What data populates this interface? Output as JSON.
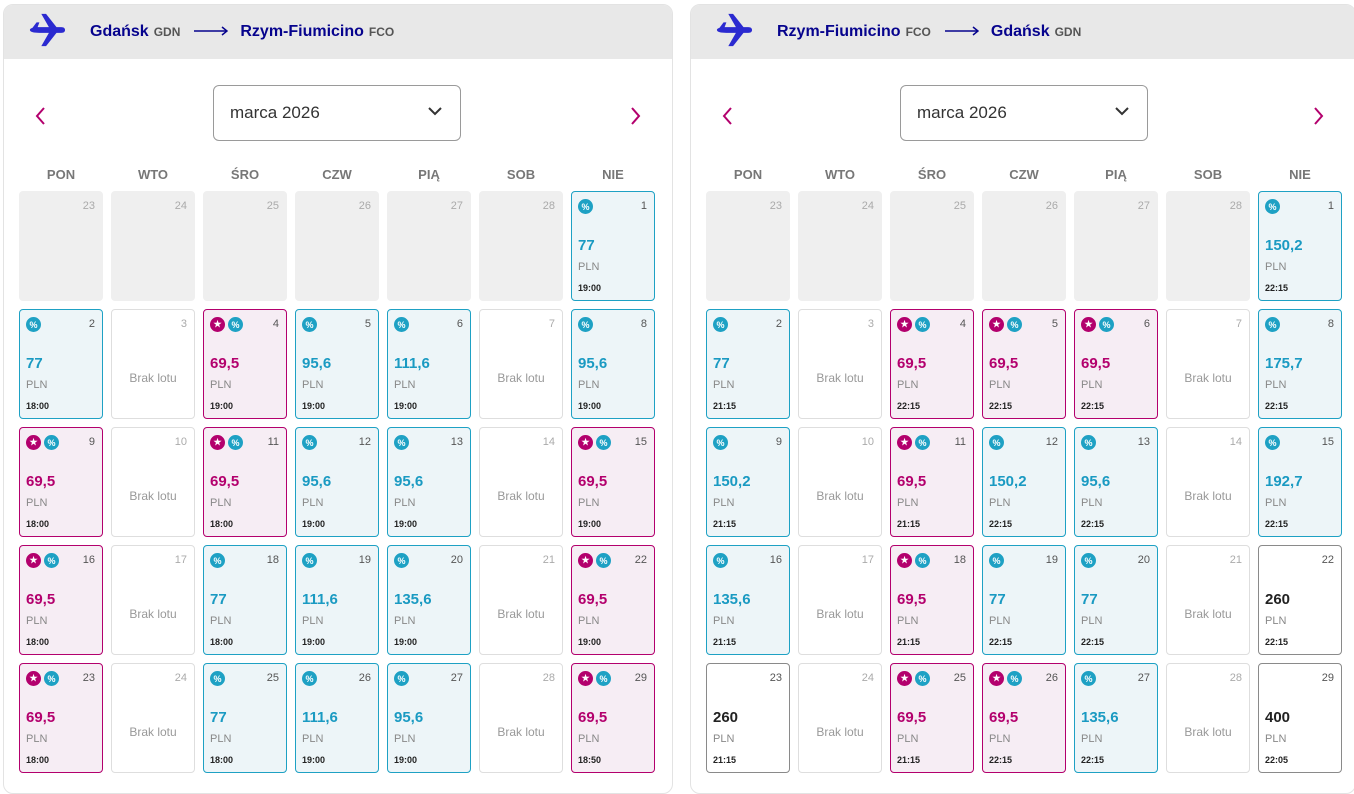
{
  "panels": [
    {
      "origin_city": "Gdańsk",
      "origin_code": "GDN",
      "dest_city": "Rzym-Fiumicino",
      "dest_code": "FCO",
      "month_label": "marca 2026",
      "weekdays": [
        "PON",
        "WTO",
        "ŚRO",
        "CZW",
        "PIĄ",
        "SOB",
        "NIE"
      ],
      "cells": [
        {
          "day": "23",
          "kind": "pad"
        },
        {
          "day": "24",
          "kind": "pad"
        },
        {
          "day": "25",
          "kind": "pad"
        },
        {
          "day": "26",
          "kind": "pad"
        },
        {
          "day": "27",
          "kind": "pad"
        },
        {
          "day": "28",
          "kind": "pad"
        },
        {
          "day": "1",
          "kind": "promo",
          "price": "77",
          "currency": "PLN",
          "time": "19:00",
          "badges": [
            "disc"
          ]
        },
        {
          "day": "2",
          "kind": "promo",
          "price": "77",
          "currency": "PLN",
          "time": "18:00",
          "badges": [
            "disc"
          ]
        },
        {
          "day": "3",
          "kind": "noflight",
          "label": "Brak lotu"
        },
        {
          "day": "4",
          "kind": "club",
          "price": "69,5",
          "currency": "PLN",
          "time": "19:00",
          "badges": [
            "star",
            "disc"
          ]
        },
        {
          "day": "5",
          "kind": "promo",
          "price": "95,6",
          "currency": "PLN",
          "time": "19:00",
          "badges": [
            "disc"
          ]
        },
        {
          "day": "6",
          "kind": "promo",
          "price": "111,6",
          "currency": "PLN",
          "time": "19:00",
          "badges": [
            "disc"
          ]
        },
        {
          "day": "7",
          "kind": "noflight",
          "label": "Brak lotu"
        },
        {
          "day": "8",
          "kind": "promo",
          "price": "95,6",
          "currency": "PLN",
          "time": "19:00",
          "badges": [
            "disc"
          ]
        },
        {
          "day": "9",
          "kind": "club",
          "price": "69,5",
          "currency": "PLN",
          "time": "18:00",
          "badges": [
            "star",
            "disc"
          ]
        },
        {
          "day": "10",
          "kind": "noflight",
          "label": "Brak lotu"
        },
        {
          "day": "11",
          "kind": "club",
          "price": "69,5",
          "currency": "PLN",
          "time": "18:00",
          "badges": [
            "star",
            "disc"
          ]
        },
        {
          "day": "12",
          "kind": "promo",
          "price": "95,6",
          "currency": "PLN",
          "time": "19:00",
          "badges": [
            "disc"
          ]
        },
        {
          "day": "13",
          "kind": "promo",
          "price": "95,6",
          "currency": "PLN",
          "time": "19:00",
          "badges": [
            "disc"
          ]
        },
        {
          "day": "14",
          "kind": "noflight",
          "label": "Brak lotu"
        },
        {
          "day": "15",
          "kind": "club",
          "price": "69,5",
          "currency": "PLN",
          "time": "19:00",
          "badges": [
            "star",
            "disc"
          ]
        },
        {
          "day": "16",
          "kind": "club",
          "price": "69,5",
          "currency": "PLN",
          "time": "18:00",
          "badges": [
            "star",
            "disc"
          ]
        },
        {
          "day": "17",
          "kind": "noflight",
          "label": "Brak lotu"
        },
        {
          "day": "18",
          "kind": "promo",
          "price": "77",
          "currency": "PLN",
          "time": "18:00",
          "badges": [
            "disc"
          ]
        },
        {
          "day": "19",
          "kind": "promo",
          "price": "111,6",
          "currency": "PLN",
          "time": "19:00",
          "badges": [
            "disc"
          ]
        },
        {
          "day": "20",
          "kind": "promo",
          "price": "135,6",
          "currency": "PLN",
          "time": "19:00",
          "badges": [
            "disc"
          ]
        },
        {
          "day": "21",
          "kind": "noflight",
          "label": "Brak lotu"
        },
        {
          "day": "22",
          "kind": "club",
          "price": "69,5",
          "currency": "PLN",
          "time": "19:00",
          "badges": [
            "star",
            "disc"
          ]
        },
        {
          "day": "23",
          "kind": "club",
          "price": "69,5",
          "currency": "PLN",
          "time": "18:00",
          "badges": [
            "star",
            "disc"
          ]
        },
        {
          "day": "24",
          "kind": "noflight",
          "label": "Brak lotu"
        },
        {
          "day": "25",
          "kind": "promo",
          "price": "77",
          "currency": "PLN",
          "time": "18:00",
          "badges": [
            "disc"
          ]
        },
        {
          "day": "26",
          "kind": "promo",
          "price": "111,6",
          "currency": "PLN",
          "time": "19:00",
          "badges": [
            "disc"
          ]
        },
        {
          "day": "27",
          "kind": "promo",
          "price": "95,6",
          "currency": "PLN",
          "time": "19:00",
          "badges": [
            "disc"
          ]
        },
        {
          "day": "28",
          "kind": "noflight",
          "label": "Brak lotu"
        },
        {
          "day": "29",
          "kind": "club",
          "price": "69,5",
          "currency": "PLN",
          "time": "18:50",
          "badges": [
            "star",
            "disc"
          ]
        }
      ]
    },
    {
      "origin_city": "Rzym-Fiumicino",
      "origin_code": "FCO",
      "dest_city": "Gdańsk",
      "dest_code": "GDN",
      "month_label": "marca 2026",
      "weekdays": [
        "PON",
        "WTO",
        "ŚRO",
        "CZW",
        "PIĄ",
        "SOB",
        "NIE"
      ],
      "cells": [
        {
          "day": "23",
          "kind": "pad"
        },
        {
          "day": "24",
          "kind": "pad"
        },
        {
          "day": "25",
          "kind": "pad"
        },
        {
          "day": "26",
          "kind": "pad"
        },
        {
          "day": "27",
          "kind": "pad"
        },
        {
          "day": "28",
          "kind": "pad"
        },
        {
          "day": "1",
          "kind": "promo",
          "price": "150,2",
          "currency": "PLN",
          "time": "22:15",
          "badges": [
            "disc"
          ]
        },
        {
          "day": "2",
          "kind": "promo",
          "price": "77",
          "currency": "PLN",
          "time": "21:15",
          "badges": [
            "disc"
          ]
        },
        {
          "day": "3",
          "kind": "noflight",
          "label": "Brak lotu"
        },
        {
          "day": "4",
          "kind": "club",
          "price": "69,5",
          "currency": "PLN",
          "time": "22:15",
          "badges": [
            "star",
            "disc"
          ]
        },
        {
          "day": "5",
          "kind": "club",
          "price": "69,5",
          "currency": "PLN",
          "time": "22:15",
          "badges": [
            "star",
            "disc"
          ]
        },
        {
          "day": "6",
          "kind": "club",
          "price": "69,5",
          "currency": "PLN",
          "time": "22:15",
          "badges": [
            "star",
            "disc"
          ]
        },
        {
          "day": "7",
          "kind": "noflight",
          "label": "Brak lotu"
        },
        {
          "day": "8",
          "kind": "promo",
          "price": "175,7",
          "currency": "PLN",
          "time": "22:15",
          "badges": [
            "disc"
          ]
        },
        {
          "day": "9",
          "kind": "promo",
          "price": "150,2",
          "currency": "PLN",
          "time": "21:15",
          "badges": [
            "disc"
          ]
        },
        {
          "day": "10",
          "kind": "noflight",
          "label": "Brak lotu"
        },
        {
          "day": "11",
          "kind": "club",
          "price": "69,5",
          "currency": "PLN",
          "time": "21:15",
          "badges": [
            "star",
            "disc"
          ]
        },
        {
          "day": "12",
          "kind": "promo",
          "price": "150,2",
          "currency": "PLN",
          "time": "22:15",
          "badges": [
            "disc"
          ]
        },
        {
          "day": "13",
          "kind": "promo",
          "price": "95,6",
          "currency": "PLN",
          "time": "22:15",
          "badges": [
            "disc"
          ]
        },
        {
          "day": "14",
          "kind": "noflight",
          "label": "Brak lotu"
        },
        {
          "day": "15",
          "kind": "promo",
          "price": "192,7",
          "currency": "PLN",
          "time": "22:15",
          "badges": [
            "disc"
          ]
        },
        {
          "day": "16",
          "kind": "promo",
          "price": "135,6",
          "currency": "PLN",
          "time": "21:15",
          "badges": [
            "disc"
          ]
        },
        {
          "day": "17",
          "kind": "noflight",
          "label": "Brak lotu"
        },
        {
          "day": "18",
          "kind": "club",
          "price": "69,5",
          "currency": "PLN",
          "time": "21:15",
          "badges": [
            "star",
            "disc"
          ]
        },
        {
          "day": "19",
          "kind": "promo",
          "price": "77",
          "currency": "PLN",
          "time": "22:15",
          "badges": [
            "disc"
          ]
        },
        {
          "day": "20",
          "kind": "promo",
          "price": "77",
          "currency": "PLN",
          "time": "22:15",
          "badges": [
            "disc"
          ]
        },
        {
          "day": "21",
          "kind": "noflight",
          "label": "Brak lotu"
        },
        {
          "day": "22",
          "kind": "plain",
          "price": "260",
          "currency": "PLN",
          "time": "22:15",
          "badges": []
        },
        {
          "day": "23",
          "kind": "plain",
          "price": "260",
          "currency": "PLN",
          "time": "21:15",
          "badges": []
        },
        {
          "day": "24",
          "kind": "noflight",
          "label": "Brak lotu"
        },
        {
          "day": "25",
          "kind": "club",
          "price": "69,5",
          "currency": "PLN",
          "time": "21:15",
          "badges": [
            "star",
            "disc"
          ]
        },
        {
          "day": "26",
          "kind": "club",
          "price": "69,5",
          "currency": "PLN",
          "time": "22:15",
          "badges": [
            "star",
            "disc"
          ]
        },
        {
          "day": "27",
          "kind": "promo",
          "price": "135,6",
          "currency": "PLN",
          "time": "22:15",
          "badges": [
            "disc"
          ]
        },
        {
          "day": "28",
          "kind": "noflight",
          "label": "Brak lotu"
        },
        {
          "day": "29",
          "kind": "plain",
          "price": "400",
          "currency": "PLN",
          "time": "22:05",
          "badges": []
        }
      ]
    }
  ],
  "colors": {
    "brand_navy": "#06038d",
    "promo_blue": "#1ea1c4",
    "club_magenta": "#b3006d"
  },
  "icons": {
    "discount": "%",
    "club": "★",
    "plane": "plane-icon",
    "prev": "chevron-left-icon",
    "next": "chevron-right-icon",
    "dropdown": "chevron-down-icon"
  }
}
